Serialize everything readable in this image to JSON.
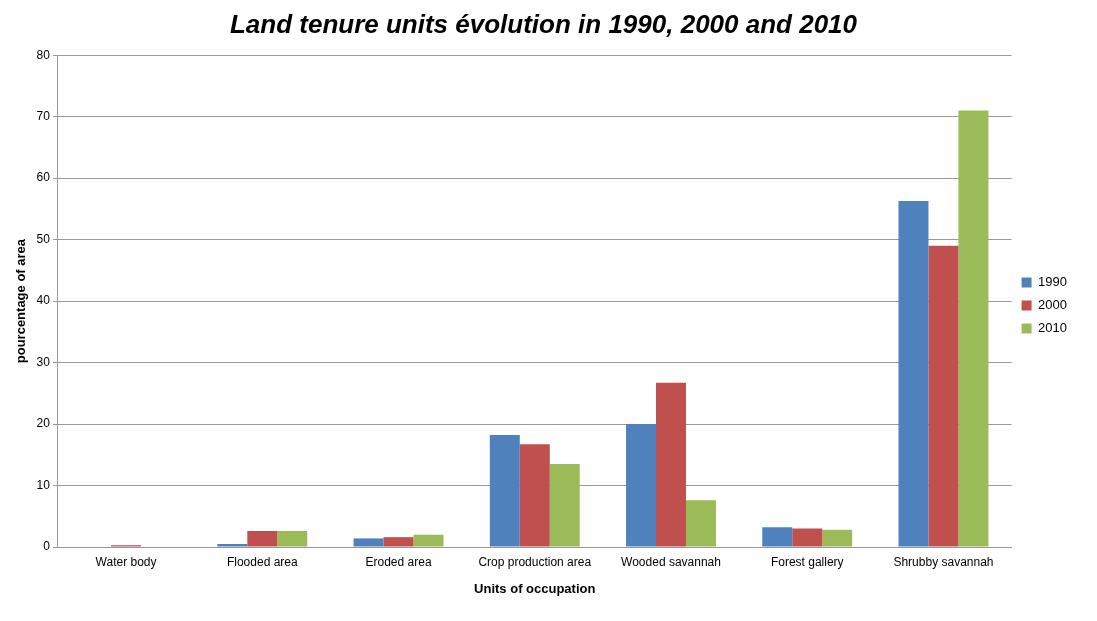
{
  "chart_data": {
    "type": "bar",
    "title": "Land tenure units évolution in 1990, 2000 and 2010",
    "xlabel": "Units of occupation",
    "ylabel": "pourcentage of area",
    "categories": [
      "Water body",
      "Flooded area",
      "Eroded area",
      "Crop production area",
      "Wooded savannah",
      "Forest gallery",
      "Shrubby savannah"
    ],
    "series": [
      {
        "name": "1990",
        "color": "#4f81bd",
        "values": [
          0,
          0.5,
          1.4,
          18.2,
          20,
          3.2,
          56.3
        ]
      },
      {
        "name": "2000",
        "color": "#c0504d",
        "values": [
          0.3,
          2.6,
          1.6,
          16.7,
          26.7,
          3.0,
          49
        ]
      },
      {
        "name": "2010",
        "color": "#9bbb59",
        "values": [
          0,
          2.6,
          2.0,
          13.5,
          7.6,
          2.8,
          71
        ]
      }
    ],
    "ylim": [
      0,
      80
    ],
    "yticks": [
      0,
      10,
      20,
      30,
      40,
      50,
      60,
      70,
      80
    ],
    "grid": "y",
    "legend": "right"
  }
}
